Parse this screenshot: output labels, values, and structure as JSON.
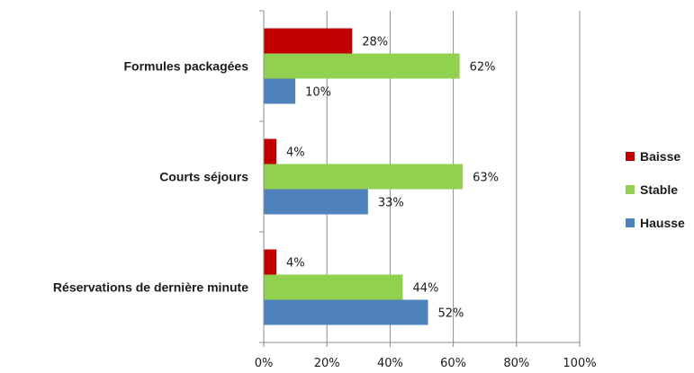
{
  "chart_data": {
    "type": "bar",
    "orientation": "horizontal",
    "categories": [
      "Formules packagées",
      "Courts séjours",
      "Réservations de dernière minute"
    ],
    "series": [
      {
        "name": "Baisse",
        "color": "#C00000",
        "values": [
          28,
          4,
          4
        ],
        "labels": [
          "28%",
          "4%",
          "4%"
        ]
      },
      {
        "name": "Stable",
        "color": "#92D050",
        "values": [
          62,
          63,
          44
        ],
        "labels": [
          "62%",
          "63%",
          "44%"
        ]
      },
      {
        "name": "Hausse",
        "color": "#4F81BD",
        "values": [
          10,
          33,
          52
        ],
        "labels": [
          "10%",
          "33%",
          "52%"
        ]
      }
    ],
    "xlim": [
      0,
      100
    ],
    "x_ticks": [
      0,
      20,
      40,
      60,
      80,
      100
    ],
    "x_tick_labels": [
      "0%",
      "20%",
      "40%",
      "60%",
      "80%",
      "100%"
    ],
    "grid": "vertical",
    "legend": {
      "placement": "right",
      "order": [
        "Baisse",
        "Stable",
        "Hausse"
      ]
    },
    "title": "",
    "xlabel": "",
    "ylabel": ""
  }
}
